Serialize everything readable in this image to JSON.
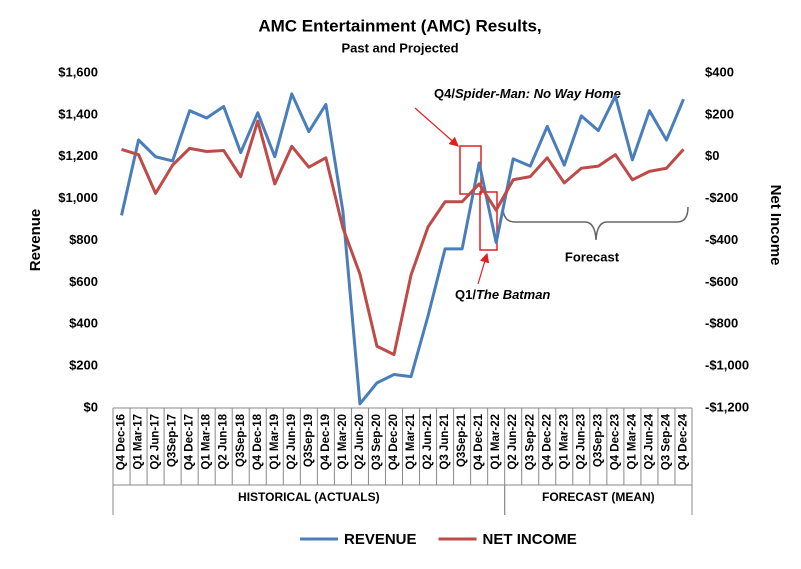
{
  "chart_data": {
    "type": "line",
    "title": "AMC Entertainment (AMC) Results,",
    "subtitle": "Past and Projected",
    "y_label": "Revenue",
    "y2_label": "Net Income",
    "categories": [
      "Q4 Dec-16",
      "Q1 Mar-17",
      "Q2 Jun-17",
      "Q3Sep-17",
      "Q4 Dec-17",
      "Q1 Mar-18",
      "Q2 Jun-18",
      "Q3Sep-18",
      "Q4 Dec-18",
      "Q1 Mar-19",
      "Q2 Jun-19",
      "Q3Sep-19",
      "Q4 Dec-19",
      "Q1 Mar-20",
      "Q2 Jun-20",
      "Q3 Sep-20",
      "Q4 Dec-20",
      "Q1 Mar-21",
      "Q2 Jun-21",
      "Q3 Jun-21",
      "Q3Sep-21",
      "Q4 Dec-21",
      "Q1 Mar-22",
      "Q2 Jun-22",
      "Q3 Sep-22",
      "Q4 Dec-22",
      "Q1 Mar-23",
      "Q2 Jun-23",
      "Q3Sep-23",
      "Q4 Dec-23",
      "Q1 Mar-24",
      "Q2 Jun-24",
      "Q3 Sep-24",
      "Q4 Dec-24"
    ],
    "groups": [
      {
        "label": "HISTORICAL (ACTUALS)",
        "start": 0,
        "end": 22
      },
      {
        "label": "FORECAST (MEAN)",
        "start": 23,
        "end": 33
      }
    ],
    "series": [
      {
        "name": "REVENUE",
        "color": "#4a7ebb",
        "values": [
          920,
          1280,
          1200,
          1180,
          1420,
          1385,
          1440,
          1220,
          1410,
          1200,
          1500,
          1320,
          1450,
          940,
          20,
          120,
          160,
          150,
          440,
          760,
          760,
          1170,
          790,
          1190,
          1155,
          1345,
          1160,
          1395,
          1325,
          1490,
          1185,
          1420,
          1280,
          1475
        ]
      },
      {
        "name": "NET INCOME",
        "color": "#be4b48",
        "axis": "y2",
        "values": [
          35,
          10,
          -175,
          -40,
          40,
          25,
          30,
          -95,
          170,
          -130,
          50,
          -50,
          -5,
          -340,
          -560,
          -905,
          -945,
          -565,
          -335,
          -215,
          -215,
          -130,
          -255,
          -110,
          -95,
          -5,
          -125,
          -55,
          -45,
          10,
          -110,
          -70,
          -55,
          35
        ]
      }
    ],
    "ylim": [
      0,
      1600
    ],
    "yticks": [
      {
        "value": 0,
        "label": "$0"
      },
      {
        "value": 200,
        "label": "$200"
      },
      {
        "value": 400,
        "label": "$400"
      },
      {
        "value": 600,
        "label": "$600"
      },
      {
        "value": 800,
        "label": "$800"
      },
      {
        "value": 1000,
        "label": "$1,000"
      },
      {
        "value": 1200,
        "label": "$1,200"
      },
      {
        "value": 1400,
        "label": "$1,400"
      },
      {
        "value": 1600,
        "label": "$1,600"
      }
    ],
    "y2lim": [
      -1200,
      400
    ],
    "y2ticks": [
      {
        "value": -1200,
        "label": "-$1,200"
      },
      {
        "value": -1000,
        "label": "-$1,000"
      },
      {
        "value": -800,
        "label": "-$800"
      },
      {
        "value": -600,
        "label": "-$600"
      },
      {
        "value": -400,
        "label": "-$400"
      },
      {
        "value": -200,
        "label": "-$200"
      },
      {
        "value": 0,
        "label": "$0"
      },
      {
        "value": 200,
        "label": "$200"
      },
      {
        "value": 400,
        "label": "$400"
      }
    ],
    "annotations": [
      {
        "prefix": "Q4/",
        "title": "Spider-Man: No Way Home"
      },
      {
        "prefix": "Q1/",
        "title": "The Batman"
      },
      {
        "text": "Forecast"
      }
    ]
  }
}
